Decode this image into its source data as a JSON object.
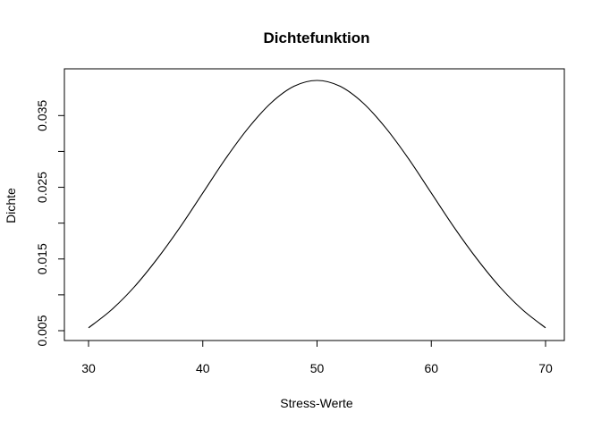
{
  "chart_data": {
    "type": "line",
    "title": "Dichtefunktion",
    "xlabel": "Stress-Werte",
    "ylabel": "Dichte",
    "xlim": [
      30,
      70
    ],
    "ylim": [
      0.005,
      0.0399
    ],
    "x_ticks": [
      30,
      40,
      50,
      60,
      70
    ],
    "x_tick_labels": [
      "30",
      "40",
      "50",
      "60",
      "70"
    ],
    "y_ticks": [
      0.005,
      0.01,
      0.015,
      0.02,
      0.025,
      0.03,
      0.035
    ],
    "y_tick_labels": [
      "0.005",
      "",
      "0.015",
      "",
      "0.025",
      "",
      "0.035"
    ],
    "grid": false,
    "series": [
      {
        "x": [
          30,
          32,
          34,
          36,
          38,
          40,
          42,
          44,
          46,
          48,
          50,
          52,
          54,
          56,
          58,
          60,
          62,
          64,
          66,
          68,
          70
        ],
        "y": [
          0.0054,
          0.0079,
          0.0111,
          0.015,
          0.0194,
          0.0242,
          0.029,
          0.0333,
          0.0368,
          0.0391,
          0.0399,
          0.0391,
          0.0368,
          0.0333,
          0.029,
          0.0242,
          0.0194,
          0.015,
          0.0111,
          0.0079,
          0.0054
        ],
        "color": "#000000"
      }
    ]
  }
}
